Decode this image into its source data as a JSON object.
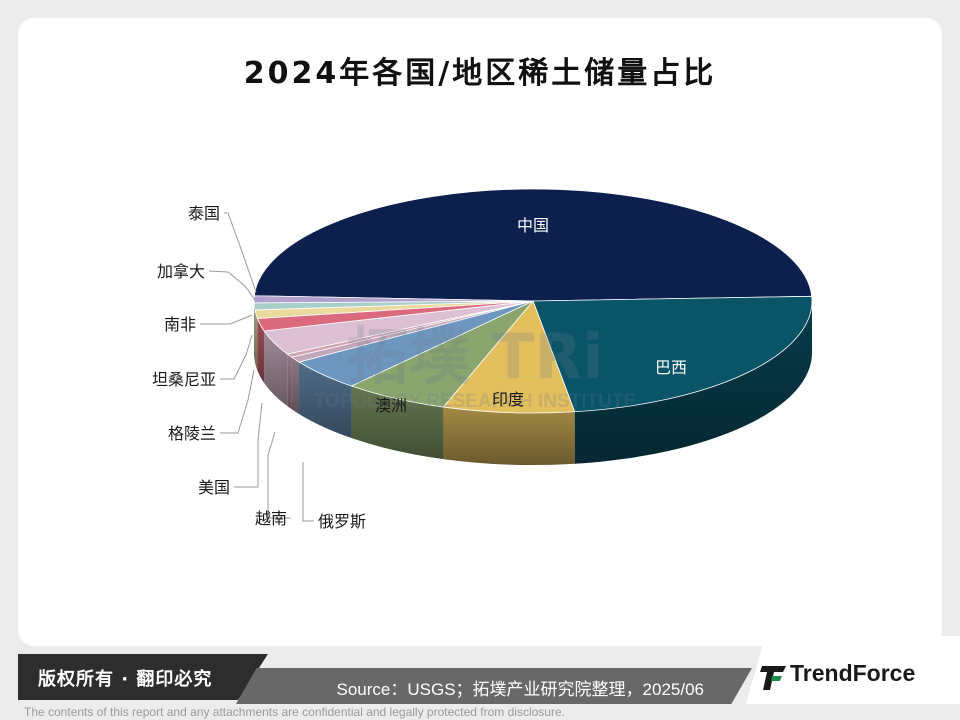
{
  "chart_data": {
    "type": "pie",
    "title": "2024年各国/地区稀土储量占比",
    "slices": [
      {
        "label": "中国",
        "value": 48.0,
        "color": "#0c1f4d"
      },
      {
        "label": "巴西",
        "value": 23.0,
        "color": "#0a5468"
      },
      {
        "label": "印度",
        "value": 7.5,
        "color": "#e3bf5e"
      },
      {
        "label": "澳洲",
        "value": 6.0,
        "color": "#8aa56e"
      },
      {
        "label": "俄罗斯",
        "value": 4.5,
        "color": "#6e97bf"
      },
      {
        "label": "越南",
        "value": 0.8,
        "color": "#c3a6b9"
      },
      {
        "label": "美国",
        "value": 0.5,
        "color": "#cfa3b4"
      },
      {
        "label": "格陵兰",
        "value": 3.5,
        "color": "#ddc0d3"
      },
      {
        "label": "坦桑尼亚",
        "value": 1.8,
        "color": "#dc6a7f"
      },
      {
        "label": "南非",
        "value": 1.2,
        "color": "#ecd99c"
      },
      {
        "label": "加拿大",
        "value": 1.0,
        "color": "#a8cfc8"
      },
      {
        "label": "泰国",
        "value": 1.0,
        "color": "#b3a1cd"
      }
    ]
  },
  "watermark": {
    "logo_text": "拓墣 TRi",
    "subtitle": "TOPOLOGY RESEARCH INSTITUTE"
  },
  "footer": {
    "copyright": "版权所有 · 翻印必究",
    "source": "Source：USGS；拓墣产业研究院整理，2025/06",
    "brand": "TrendForce",
    "disclaimer": "The contents of this report and any attachments are confidential and legally protected from disclosure."
  },
  "colors": {
    "footer_dark": "#2d2d2d",
    "footer_mid": "#686868",
    "brand_green": "#1e8f4a"
  }
}
